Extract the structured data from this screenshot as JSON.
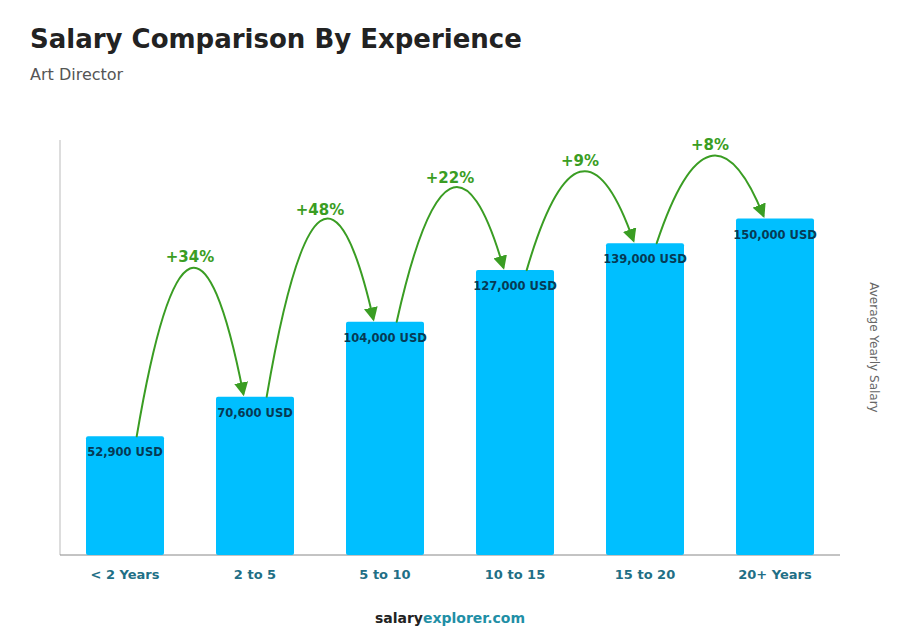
{
  "chart_data": {
    "type": "bar",
    "title": "Salary Comparison By Experience",
    "subtitle": "Art Director",
    "ylabel": "Average Yearly Salary",
    "categories": [
      "< 2 Years",
      "2 to 5",
      "5 to 10",
      "10 to 15",
      "15 to 20",
      "20+ Years"
    ],
    "values": [
      52900,
      70600,
      104000,
      127000,
      139000,
      150000
    ],
    "value_labels": [
      "52,900 USD",
      "70,600 USD",
      "104,000 USD",
      "127,000 USD",
      "139,000 USD",
      "150,000 USD"
    ],
    "data_labels": true,
    "annotations": [
      "+34%",
      "+48%",
      "+22%",
      "+9%",
      "+8%"
    ],
    "footer": [
      "salary",
      "explorer.com"
    ],
    "color": "#00BFFF",
    "ylim": [
      0,
      185000
    ],
    "tick_labels": "x",
    "grid": false
  }
}
